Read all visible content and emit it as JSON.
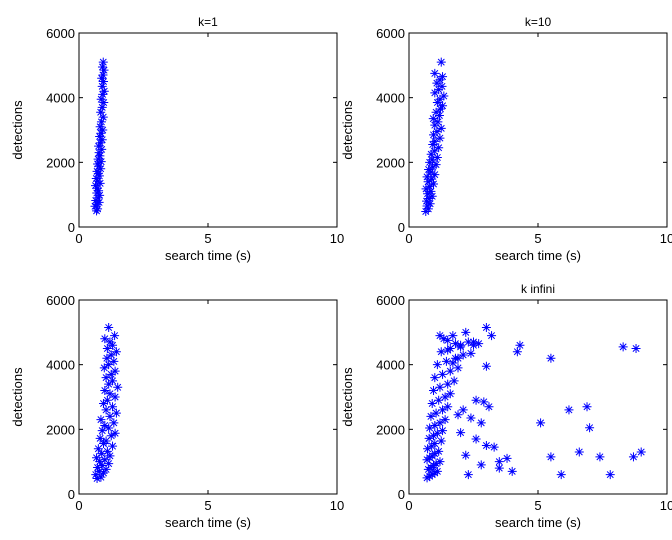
{
  "chart_data": [
    {
      "type": "scatter",
      "title": "k=1",
      "xlabel": "search time (s)",
      "ylabel": "detections",
      "xlim": [
        0,
        10
      ],
      "ylim": [
        0,
        6000
      ],
      "x_ticks": [
        0,
        5,
        10
      ],
      "y_ticks": [
        0,
        2000,
        4000,
        6000
      ],
      "grid": false,
      "marker": "asterisk",
      "color": "#0000ff",
      "series": [
        {
          "x": [
            0.68,
            0.72,
            0.62,
            0.7,
            0.78,
            0.65,
            0.74,
            0.8,
            0.69,
            0.76,
            0.71,
            0.64,
            0.82,
            0.73,
            0.67,
            0.79,
            0.75,
            0.7,
            0.84,
            0.77,
            0.72,
            0.86,
            0.74,
            0.81,
            0.78,
            0.88,
            0.76,
            0.83,
            0.9,
            0.8,
            0.85,
            0.92,
            0.82,
            0.87,
            0.94,
            0.84,
            0.9,
            0.96,
            0.86,
            0.92,
            0.98,
            0.9,
            0.95,
            0.88,
            0.93,
            0.97,
            0.91,
            0.94
          ],
          "y": [
            500,
            560,
            640,
            700,
            760,
            820,
            900,
            980,
            1050,
            1120,
            1200,
            1280,
            1350,
            1420,
            1500,
            1580,
            1650,
            1720,
            1800,
            1880,
            1950,
            2020,
            2100,
            2200,
            2300,
            2400,
            2500,
            2600,
            2700,
            2800,
            2900,
            3000,
            3100,
            3250,
            3400,
            3550,
            3700,
            3850,
            3950,
            4100,
            4200,
            4350,
            4500,
            4600,
            4700,
            4850,
            4950,
            5100
          ]
        }
      ]
    },
    {
      "type": "scatter",
      "title": "k=10",
      "xlabel": "search time (s)",
      "ylabel": "detections",
      "xlim": [
        0,
        10
      ],
      "ylim": [
        0,
        6000
      ],
      "x_ticks": [
        0,
        5,
        10
      ],
      "y_ticks": [
        0,
        2000,
        4000,
        6000
      ],
      "grid": false,
      "marker": "asterisk",
      "color": "#0000ff",
      "series": [
        {
          "x": [
            0.65,
            0.75,
            0.7,
            0.82,
            0.68,
            0.78,
            0.9,
            0.72,
            0.85,
            0.66,
            0.8,
            0.95,
            0.74,
            0.88,
            0.7,
            1.0,
            0.84,
            0.76,
            0.92,
            1.05,
            0.8,
            0.9,
            1.1,
            0.86,
            0.98,
            1.15,
            0.92,
            1.0,
            1.2,
            0.95,
            1.08,
            1.25,
            1.0,
            1.12,
            0.94,
            1.18,
            1.05,
            1.22,
            1.3,
            1.1,
            1.2,
            1.35,
            1.0,
            1.15,
            1.28,
            1.08,
            1.2,
            1.3,
            1.0,
            1.25
          ],
          "y": [
            480,
            560,
            650,
            720,
            800,
            880,
            950,
            1030,
            1100,
            1180,
            1250,
            1330,
            1400,
            1480,
            1550,
            1620,
            1700,
            1780,
            1850,
            1930,
            2000,
            2080,
            2150,
            2250,
            2350,
            2450,
            2550,
            2650,
            2750,
            2850,
            2950,
            3050,
            3150,
            3250,
            3350,
            3450,
            3550,
            3650,
            3750,
            3850,
            3950,
            4050,
            4150,
            4250,
            4350,
            4450,
            4550,
            4650,
            4750,
            5100
          ]
        }
      ]
    },
    {
      "type": "scatter",
      "title": "",
      "xlabel": "search time (s)",
      "ylabel": "detections",
      "xlim": [
        0,
        10
      ],
      "ylim": [
        0,
        6000
      ],
      "x_ticks": [
        0,
        5,
        10
      ],
      "y_ticks": [
        0,
        2000,
        4000,
        6000
      ],
      "grid": false,
      "marker": "asterisk",
      "color": "#0000ff",
      "series": [
        {
          "x": [
            0.7,
            0.85,
            0.65,
            0.95,
            0.78,
            1.05,
            0.72,
            0.9,
            1.15,
            0.8,
            1.0,
            0.68,
            1.2,
            0.88,
            1.1,
            0.75,
            1.3,
            0.95,
            1.05,
            0.82,
            1.25,
            1.4,
            0.9,
            1.15,
            1.0,
            1.35,
            0.85,
            1.2,
            1.45,
            1.05,
            1.3,
            0.95,
            1.1,
            1.4,
            1.2,
            1.0,
            1.5,
            1.15,
            1.3,
            1.05,
            1.25,
            1.4,
            0.98,
            1.15,
            1.35,
            1.08,
            1.25,
            1.45,
            1.1,
            1.3,
            1.2,
            1.0,
            1.38,
            1.15
          ],
          "y": [
            480,
            520,
            600,
            650,
            700,
            760,
            820,
            880,
            940,
            1000,
            1060,
            1120,
            1180,
            1250,
            1320,
            1400,
            1480,
            1560,
            1640,
            1720,
            1800,
            1880,
            1960,
            2040,
            2120,
            2200,
            2300,
            2400,
            2500,
            2600,
            2700,
            2800,
            2900,
            3000,
            3100,
            3200,
            3300,
            3400,
            3500,
            3600,
            3700,
            3800,
            3900,
            4000,
            4100,
            4200,
            4300,
            4400,
            4500,
            4600,
            4700,
            4800,
            4900,
            5150
          ]
        }
      ]
    },
    {
      "type": "scatter",
      "title": "k infini",
      "xlabel": "search time (s)",
      "ylabel": "detections",
      "xlim": [
        0,
        10
      ],
      "ylim": [
        0,
        6000
      ],
      "x_ticks": [
        0,
        5,
        10
      ],
      "y_ticks": [
        0,
        2000,
        4000,
        6000
      ],
      "grid": false,
      "marker": "asterisk",
      "color": "#0000ff",
      "series": [
        {
          "x": [
            0.7,
            0.8,
            0.9,
            1.0,
            1.1,
            0.75,
            0.85,
            0.95,
            1.05,
            1.2,
            0.7,
            0.8,
            0.9,
            1.0,
            1.15,
            0.72,
            0.88,
            1.0,
            1.25,
            0.78,
            0.95,
            1.1,
            1.3,
            0.8,
            1.0,
            1.2,
            1.4,
            0.85,
            1.05,
            1.3,
            1.5,
            0.9,
            1.15,
            1.4,
            1.6,
            0.95,
            1.2,
            1.5,
            1.75,
            1.0,
            1.3,
            1.6,
            1.9,
            1.1,
            1.45,
            1.8,
            2.1,
            1.25,
            1.6,
            2.0,
            2.3,
            1.35,
            1.7,
            2.2,
            2.5,
            1.5,
            1.9,
            2.4,
            2.7,
            1.7,
            2.1,
            2.6,
            2.9,
            1.9,
            2.4,
            2.8,
            3.1,
            2.0,
            2.6,
            3.0,
            3.3,
            2.2,
            2.8,
            3.5,
            4.0,
            2.3,
            1.2,
            1.5,
            1.8,
            2.0,
            2.5,
            3.0,
            3.2,
            3.0,
            4.3,
            5.1,
            5.5,
            5.9,
            6.2,
            6.6,
            6.9,
            7.0,
            7.4,
            8.3,
            8.8,
            9.0,
            8.7,
            7.8,
            5.5,
            4.2,
            3.8,
            3.5
          ],
          "y": [
            500,
            550,
            600,
            650,
            700,
            760,
            820,
            880,
            940,
            1000,
            1060,
            1120,
            1180,
            1250,
            1320,
            1400,
            1480,
            1560,
            1640,
            1720,
            1800,
            1880,
            1960,
            2040,
            2120,
            2200,
            2300,
            2400,
            2500,
            2600,
            2700,
            2800,
            2900,
            3000,
            3100,
            3200,
            3300,
            3400,
            3500,
            3600,
            3700,
            3800,
            3900,
            4000,
            4100,
            4200,
            4300,
            4400,
            4500,
            4600,
            4700,
            4800,
            4900,
            5000,
            4600,
            4450,
            4200,
            4350,
            4650,
            4050,
            2600,
            2900,
            2850,
            2450,
            2350,
            2200,
            2700,
            1900,
            1700,
            1500,
            1450,
            1200,
            900,
            800,
            700,
            600,
            4900,
            4750,
            4650,
            4550,
            4700,
            5150,
            4900,
            3950,
            4600,
            2200,
            1150,
            600,
            2600,
            1300,
            2700,
            2050,
            1150,
            4550,
            4500,
            1300,
            1150,
            600,
            4200,
            4400,
            1100,
            1000
          ]
        }
      ]
    }
  ]
}
